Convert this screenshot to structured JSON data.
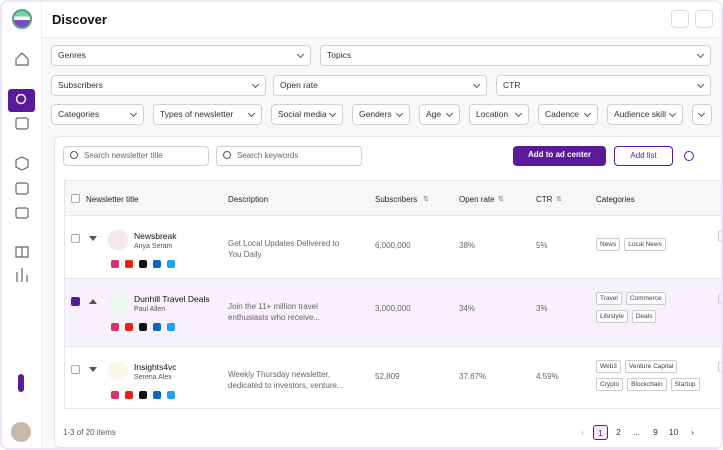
{
  "header": {
    "title": "Discover"
  },
  "filters": {
    "row1": [
      "Genres",
      "Topics"
    ],
    "row2": [
      "Subscribers",
      "Open rate",
      "CTR"
    ],
    "row3": [
      "Categories",
      "Types of newsletter",
      "Social media",
      "Genders",
      "Age",
      "Location",
      "Cadence",
      "Audience skill"
    ]
  },
  "toolbar": {
    "search_title": "Search newsletter title",
    "search_keywords": "Search keywords",
    "add_ad": "Add to ad center",
    "add_list": "Add list"
  },
  "table": {
    "columns": [
      "Newsletter title",
      "Description",
      "Subscribers",
      "Open rate",
      "CTR",
      "Categories"
    ],
    "rows": [
      {
        "title": "Newsbreak",
        "author": "Anya Seram",
        "description": "Get Local Updates Delivered to You Daily",
        "subscribers": "6,000,000",
        "open_rate": "38%",
        "ctr": "5%",
        "categories": [
          "News",
          "Local News"
        ],
        "selected": false
      },
      {
        "title": "Dunhill Travel Deals",
        "author": "Paul Allen",
        "description": "Join the 11+ million travel enthusiasts who receive...",
        "subscribers": "3,000,000",
        "open_rate": "34%",
        "ctr": "3%",
        "categories": [
          "Travel",
          "Commerce",
          "Lifestyle",
          "Deals"
        ],
        "selected": true
      },
      {
        "title": "Insights4vc",
        "author": "Serena Alex",
        "description": "Weekly Thursday newsletter, dedicated to investors, venture...",
        "subscribers": "52,809",
        "open_rate": "37.67%",
        "ctr": "4.59%",
        "categories": [
          "Web3",
          "Venture Capital",
          "Crypto",
          "Blockchain",
          "Startup"
        ],
        "selected": false
      }
    ]
  },
  "footer": {
    "summary": "1-3 of 20 items",
    "pages": [
      "1",
      "2",
      "...",
      "9",
      "10"
    ]
  }
}
